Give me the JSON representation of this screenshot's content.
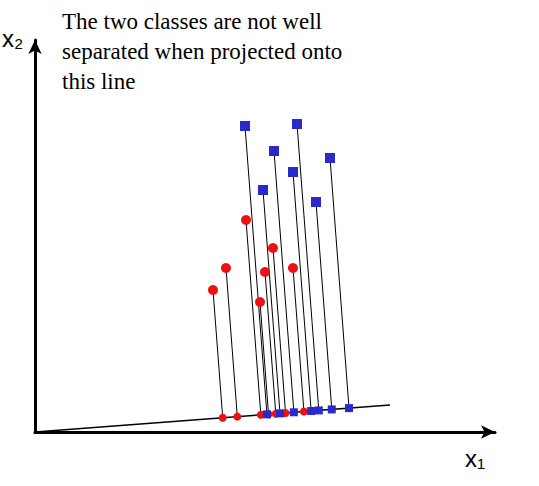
{
  "chart_data": {
    "type": "scatter",
    "annotation": [
      "The two classes are not well",
      "separated when projected onto",
      "this line"
    ],
    "x_label": "x₁",
    "y_label": "x₂",
    "xlim": [
      0,
      460
    ],
    "ylim": [
      0,
      392
    ],
    "tick_labels": false,
    "grid": false,
    "projection_line": {
      "x": [
        0,
        355
      ],
      "y": [
        0,
        27
      ]
    },
    "series": [
      {
        "color": "#ee1111",
        "marker": "circle",
        "x": [
          178,
          191,
          211,
          225,
          230,
          238,
          258
        ],
        "y": [
          142,
          164,
          212,
          130,
          160,
          184,
          164
        ]
      },
      {
        "color": "#2a2acc",
        "marker": "square",
        "x": [
          210,
          228,
          239,
          258,
          262,
          281,
          295
        ],
        "y": [
          306,
          242,
          281,
          260,
          308,
          230,
          274
        ]
      }
    ]
  }
}
